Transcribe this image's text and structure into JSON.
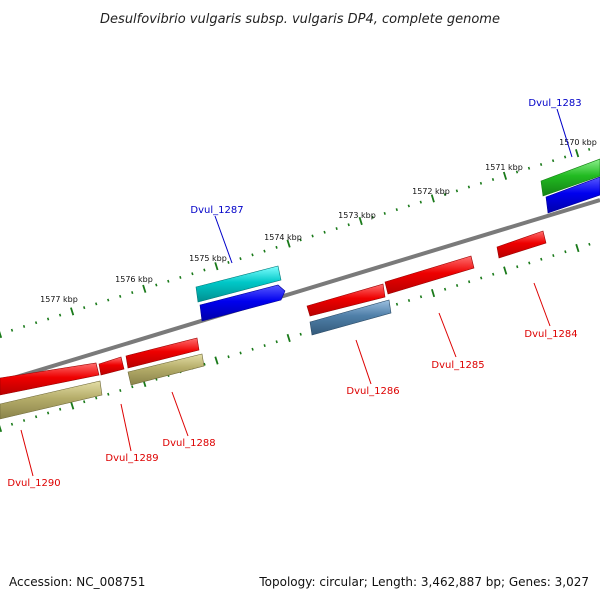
{
  "title": "Desulfovibrio vulgaris subsp. vulgaris DP4, complete genome",
  "footer": {
    "accession": "Accession: NC_008751",
    "summary": "Topology: circular; Length: 3,462,887 bp; Genes: 3,027"
  },
  "kbp_labels": [
    "1570 kbp",
    "1571 kbp",
    "1572 kbp",
    "1573 kbp",
    "1574 kbp",
    "1575 kbp",
    "1576 kbp",
    "1577 kbp"
  ],
  "genes": [
    {
      "id": "Dvul_1283",
      "strand": "forward",
      "label_color": "#0000c8"
    },
    {
      "id": "Dvul_1284",
      "strand": "reverse",
      "label_color": "#dd0000"
    },
    {
      "id": "Dvul_1285",
      "strand": "reverse",
      "label_color": "#dd0000"
    },
    {
      "id": "Dvul_1286",
      "strand": "reverse",
      "label_color": "#dd0000"
    },
    {
      "id": "Dvul_1287",
      "strand": "forward",
      "label_color": "#0000c8"
    },
    {
      "id": "Dvul_1288",
      "strand": "reverse",
      "label_color": "#dd0000"
    },
    {
      "id": "Dvul_1289",
      "strand": "reverse",
      "label_color": "#dd0000"
    },
    {
      "id": "Dvul_1290",
      "strand": "reverse",
      "label_color": "#dd0000"
    }
  ],
  "colors": {
    "backbone": "#7a7a7a",
    "ticks": "#1a7a1a",
    "gene_red": "#ee0000",
    "gene_blue": "#0000ee",
    "gene_cyan": "#00c8c8",
    "gene_green": "#22bb22",
    "gene_steel": "#4f7fa8",
    "gene_olive": "#b5ad6a"
  }
}
